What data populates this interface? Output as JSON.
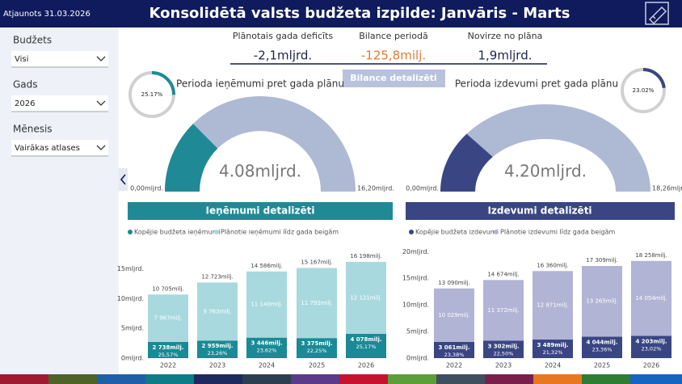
{
  "header": {
    "updated": "Atjaunots 31.03.2026",
    "title": "Konsolidētā valsts budžeta izpilde: Janvāris - Marts"
  },
  "filters": [
    {
      "label": "Budžets",
      "value": "Visi"
    },
    {
      "label": "Gads",
      "value": "2026"
    },
    {
      "label": "Mēnesis",
      "value": "Vairākas atlases"
    }
  ],
  "kpis": [
    {
      "label": "Plānotais gada deficīts",
      "value": "-2,1mljrd."
    },
    {
      "label": "Bilance periodā",
      "value": "-125,8milj."
    },
    {
      "label": "Novirze no plāna",
      "value": "1,9mljrd."
    }
  ],
  "balance_button": "Bilance detalizēti",
  "sections": [
    "Ieņēmumi detalizēti",
    "Izdevumi detalizēti"
  ],
  "chart_data": [
    {
      "type": "gauge",
      "title": "Perioda ieņēmumi pret gada plānu",
      "values": [
        4.08
      ],
      "value_labels": [
        "4.08mljrd."
      ],
      "color": "#1f8a96",
      "ylim": [
        0,
        16.2
      ],
      "yticks": [
        {
          "value": 0,
          "label": "0,00mljrd."
        },
        {
          "value": 16.2,
          "label": "16,20mljrd."
        }
      ]
    },
    {
      "type": "donut",
      "values": [
        25.17
      ],
      "value_labels": [
        "25.17%"
      ],
      "color": "#1f8a96"
    },
    {
      "type": "gauge",
      "title": "Perioda izdevumi pret gada plānu",
      "values": [
        4.2
      ],
      "value_labels": [
        "4.20mljrd."
      ],
      "color": "#3a4683",
      "ylim": [
        0,
        18.26
      ],
      "yticks": [
        {
          "value": 0,
          "label": "0,00mljrd."
        },
        {
          "value": 18.26,
          "label": "18,26mljrd."
        }
      ]
    },
    {
      "type": "donut",
      "values": [
        23.02
      ],
      "value_labels": [
        "23.02%"
      ],
      "color": "#3a4683"
    },
    {
      "type": "stacked-bar",
      "categories": [
        "2022",
        "2023",
        "2024",
        "2025",
        "2026"
      ],
      "series": [
        {
          "name": "Kopējie budžeta ieņēmumi",
          "color": "#1a8a96",
          "values": [
            2738,
            2959,
            3446,
            3375,
            4078
          ],
          "value_labels": [
            "2 738milj.",
            "2 959milj.",
            "3 446milj.",
            "3 375milj.",
            "4 078milj."
          ]
        },
        {
          "name": "Plānotie ieņēmumi līdz gada beigām",
          "color": "#a8d9df",
          "values": [
            7967,
            9763,
            11140,
            11792,
            12121
          ],
          "value_labels": [
            "7 967milj.",
            "9 763milj.",
            "11 140milj.",
            "11 792milj.",
            "12 121milj."
          ]
        }
      ],
      "totals": [
        10705,
        12723,
        14586,
        15167,
        16198
      ],
      "total_labels": [
        "10 705milj.",
        "12 723milj.",
        "14 586milj.",
        "15 167milj.",
        "16 198milj."
      ],
      "percents": [
        25.57,
        23.26,
        23.62,
        22.25,
        25.17
      ],
      "percent_labels": [
        "25,57%",
        "23,26%",
        "23,62%",
        "22,25%",
        "25,17%"
      ],
      "ylim": [
        0,
        17000
      ],
      "yticks": [
        {
          "value": 0,
          "label": "0mljrd."
        },
        {
          "value": 5000,
          "label": "5mljrd."
        },
        {
          "value": 10000,
          "label": "10mljrd."
        },
        {
          "value": 15000,
          "label": "15mljrd."
        }
      ]
    },
    {
      "type": "stacked-bar",
      "categories": [
        "2022",
        "2023",
        "2024",
        "2025",
        "2026"
      ],
      "series": [
        {
          "name": "Kopējie budžeta izdevumi",
          "color": "#3a4683",
          "values": [
            3061,
            3302,
            3489,
            4044,
            4203
          ],
          "value_labels": [
            "3 061milj.",
            "3 302milj.",
            "3 489milj.",
            "4 044milj.",
            "4 203milj."
          ]
        },
        {
          "name": "Plānotie izdevumi līdz gada beigām",
          "color": "#b1b4d4",
          "values": [
            10029,
            11372,
            12871,
            13265,
            14054
          ],
          "value_labels": [
            "10 029milj.",
            "11 372milj.",
            "12 871milj.",
            "13 265milj.",
            "14 054milj."
          ]
        }
      ],
      "totals": [
        13090,
        14674,
        16360,
        17309,
        18258
      ],
      "total_labels": [
        "13 090milj.",
        "14 674milj.",
        "16 360milj.",
        "17 309milj.",
        "18 258milj."
      ],
      "percents": [
        23.38,
        22.5,
        21.32,
        23.36,
        23.02
      ],
      "percent_labels": [
        "23,38%",
        "22,50%",
        "21,32%",
        "23,36%",
        "23,02%"
      ],
      "ylim": [
        0,
        20500
      ],
      "yticks": [
        {
          "value": 0,
          "label": "0mljrd."
        },
        {
          "value": 5000,
          "label": "5mljrd."
        },
        {
          "value": 10000,
          "label": "10mljrd."
        },
        {
          "value": 15000,
          "label": "15mljrd."
        },
        {
          "value": 20000,
          "label": "20mljrd."
        }
      ]
    }
  ]
}
